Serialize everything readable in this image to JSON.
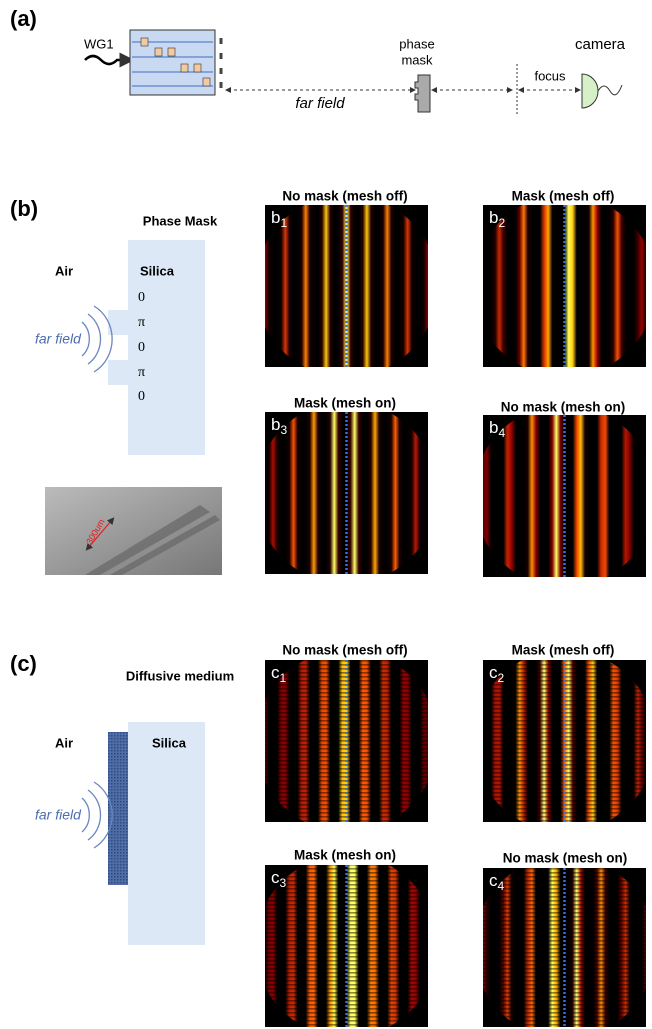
{
  "a": {
    "label": "(a)",
    "source": "WG1",
    "path": "far field",
    "mask": [
      "phase",
      "mask"
    ],
    "focus": "focus",
    "camera": "camera"
  },
  "b": {
    "label": "(b)",
    "title": "Phase Mask",
    "left": "Air",
    "right": "Silica",
    "phases": [
      "0",
      "π",
      "0",
      "π",
      "0"
    ],
    "wave": "far field",
    "scale": "300um",
    "panels": [
      {
        "title": "No mask (mesh off)",
        "letter": "b",
        "index": "1"
      },
      {
        "title": "Mask (mesh off)",
        "letter": "b",
        "index": "2"
      },
      {
        "title": "Mask (mesh on)",
        "letter": "b",
        "index": "3"
      },
      {
        "title": "No mask (mesh on)",
        "letter": "b",
        "index": "4"
      }
    ]
  },
  "c": {
    "label": "(c)",
    "title": "Diffusive medium",
    "left": "Air",
    "right": "Silica",
    "wave": "far field",
    "panels": [
      {
        "title": "No mask (mesh off)",
        "letter": "c",
        "index": "1"
      },
      {
        "title": "Mask (mesh off)",
        "letter": "c",
        "index": "2"
      },
      {
        "title": "Mask (mesh on)",
        "letter": "c",
        "index": "3"
      },
      {
        "title": "No mask (mesh on)",
        "letter": "c",
        "index": "4"
      }
    ]
  }
}
